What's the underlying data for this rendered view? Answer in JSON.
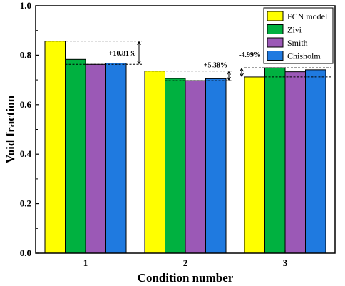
{
  "chart_data": {
    "type": "bar",
    "xlabel": "Condition number",
    "ylabel": "Void fraction",
    "categories": [
      "1",
      "2",
      "3"
    ],
    "ylim": [
      0,
      1.0
    ],
    "yticks": [
      "0.0",
      "0.2",
      "0.4",
      "0.6",
      "0.8",
      "1.0"
    ],
    "legend_position": "top-right",
    "series": [
      {
        "name": "FCN model",
        "color": "#ffff00",
        "values": [
          0.857,
          0.736,
          0.712
        ]
      },
      {
        "name": "Zivi",
        "color": "#00b140",
        "values": [
          0.783,
          0.706,
          0.749
        ]
      },
      {
        "name": "Smith",
        "color": "#9b59b6",
        "values": [
          0.763,
          0.697,
          0.733
        ]
      },
      {
        "name": "Chisholm",
        "color": "#1f7ae0",
        "values": [
          0.768,
          0.705,
          0.741
        ]
      }
    ],
    "annotations": [
      {
        "text": "+10.81%",
        "category": 0,
        "high": 0.857,
        "low": 0.763
      },
      {
        "text": "+5.38%",
        "category": 1,
        "high": 0.736,
        "low": 0.697
      },
      {
        "text": "-4.99%",
        "category": 2,
        "high": 0.749,
        "low": 0.712
      }
    ]
  }
}
